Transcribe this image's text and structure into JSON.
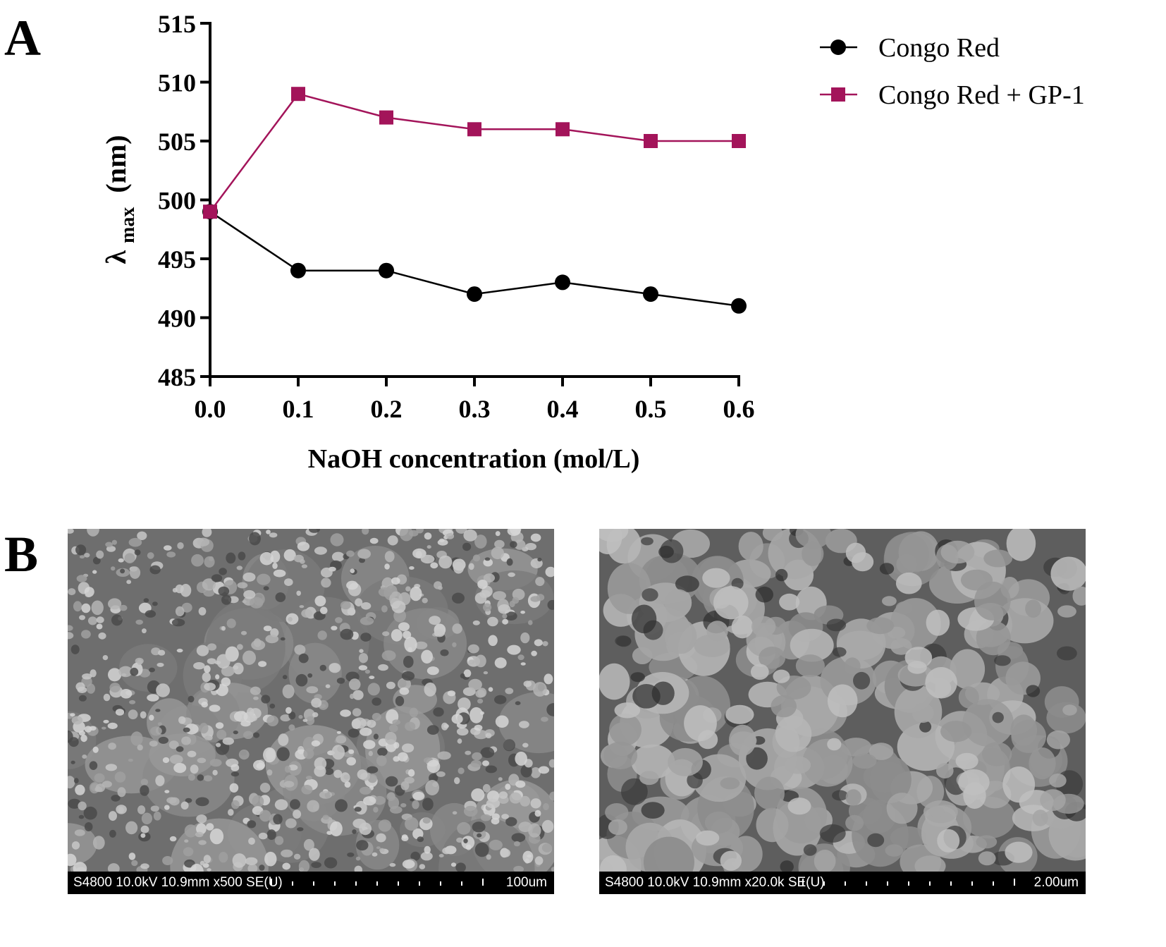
{
  "panels": {
    "a_label": "A",
    "b_label": "B"
  },
  "chart_data": {
    "type": "line",
    "title": "",
    "xlabel": "NaOH concentration (mol/L)",
    "ylabel_main": "λ",
    "ylabel_sub": "max",
    "ylabel_unit": "(nm)",
    "x": [
      0.0,
      0.1,
      0.2,
      0.3,
      0.4,
      0.5,
      0.6
    ],
    "x_tick_labels": [
      "0.0",
      "0.1",
      "0.2",
      "0.3",
      "0.4",
      "0.5",
      "0.6"
    ],
    "xlim": [
      0,
      0.6
    ],
    "ylim": [
      485,
      515
    ],
    "y_ticks": [
      485,
      490,
      495,
      500,
      505,
      510,
      515
    ],
    "y_tick_labels": [
      "485",
      "490",
      "495",
      "500",
      "505",
      "510",
      "515"
    ],
    "grid": false,
    "legend_position": "top-right",
    "series": [
      {
        "name": "Congo Red",
        "marker": "circle",
        "color": "#000000",
        "values": [
          499,
          494,
          494,
          492,
          493,
          492,
          491
        ]
      },
      {
        "name": "Congo Red + GP-1",
        "marker": "square",
        "color": "#a3145a",
        "values": [
          499,
          509,
          507,
          506,
          506,
          505,
          505
        ]
      }
    ]
  },
  "sem_images": [
    {
      "info": "S4800 10.0kV 10.9mm x500 SE(U)",
      "scale": "100um"
    },
    {
      "info": "S4800 10.0kV 10.9mm x20.0k SE(U)",
      "scale": "2.00um"
    }
  ]
}
